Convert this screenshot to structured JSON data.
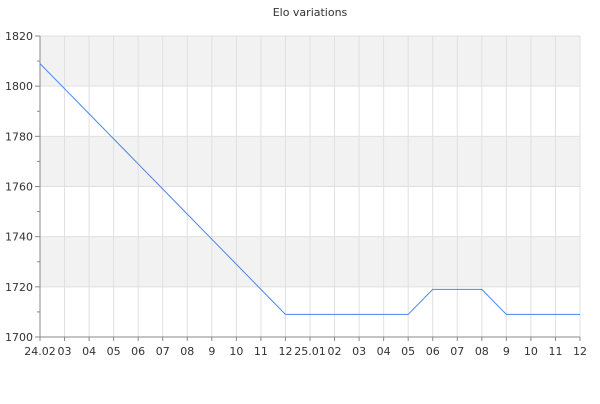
{
  "chart_data": {
    "type": "line",
    "title": "Elo variations",
    "xlabel": "",
    "ylabel": "",
    "categories": [
      "24.02",
      "03",
      "04",
      "05",
      "06",
      "07",
      "08",
      "9",
      "10",
      "11",
      "12",
      "25.01",
      "02",
      "03",
      "04",
      "05",
      "06",
      "07",
      "08",
      "9",
      "10",
      "11",
      "12"
    ],
    "series": [
      {
        "values": [
          1809,
          1799,
          1789,
          1779,
          1769,
          1759,
          1749,
          1739,
          1729,
          1719,
          1709,
          1709,
          1709,
          1709,
          1709,
          1709,
          1719,
          1719,
          1719,
          1709,
          1709,
          1709,
          1709
        ]
      }
    ],
    "ylim": [
      1700,
      1820
    ],
    "yticks": [
      1700,
      1720,
      1740,
      1760,
      1780,
      1800,
      1820
    ],
    "grid": true,
    "legend": "none",
    "colors": {
      "line": "#4a86e8",
      "band": "#f2f2f2",
      "grid": "#e0e0e0",
      "axis": "#888888"
    }
  }
}
